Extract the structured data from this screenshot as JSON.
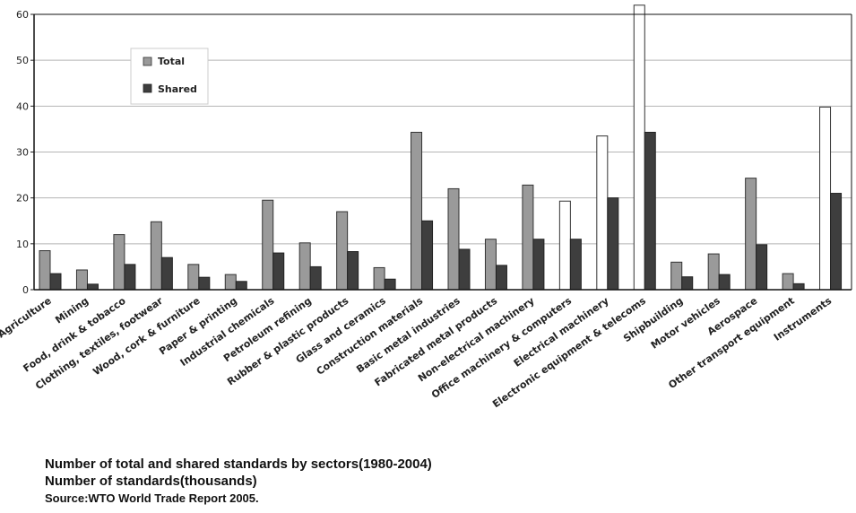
{
  "chart_data": {
    "type": "bar",
    "categories": [
      "Agriculture",
      "Mining",
      "Food, drink & tobacco",
      "Clothing, textiles, footwear",
      "Wood, cork & furniture",
      "Paper & printing",
      "Industrial chemicals",
      "Petroleum refining",
      "Rubber & plastic products",
      "Glass and ceramics",
      "Construction materials",
      "Basic metal industries",
      "Fabricated metal products",
      "Non-electrical machinery",
      "Office machinery & computers",
      "Electrical machinery",
      "Electronic equipment & telecoms",
      "Shipbuilding",
      "Motor vehicles",
      "Aerospace",
      "Other transport equipment",
      "Instruments"
    ],
    "series": [
      {
        "name": "Total",
        "values": [
          8.5,
          4.3,
          12,
          14.8,
          5.5,
          3.3,
          19.5,
          10.2,
          17,
          4.8,
          34.3,
          22,
          11,
          22.8,
          19.3,
          33.5,
          62,
          6,
          7.8,
          24.3,
          3.5,
          39.8
        ]
      },
      {
        "name": "Shared",
        "values": [
          3.5,
          1.2,
          5.5,
          7,
          2.7,
          1.8,
          8,
          5,
          8.3,
          2.3,
          15,
          8.8,
          5.3,
          11,
          11,
          20,
          34.3,
          2.8,
          3.3,
          9.8,
          1.3,
          21
        ]
      }
    ],
    "ylim": [
      0,
      60
    ],
    "yticks": [
      "0",
      "10",
      "20",
      "30",
      "40",
      "50",
      "60"
    ],
    "grid": true,
    "legend_position": "top-left",
    "colors": {
      "total": "#9a9a9a",
      "total_highlight": "#ffffff",
      "shared": "#3e3e3e"
    },
    "highlighted_total_categories": [
      14,
      15,
      16,
      21
    ]
  },
  "captions": {
    "title": "Number of total and shared standards by sectors(1980-2004)",
    "unit": "Number of standards(thousands)",
    "source": "Source:WTO World Trade Report 2005."
  }
}
